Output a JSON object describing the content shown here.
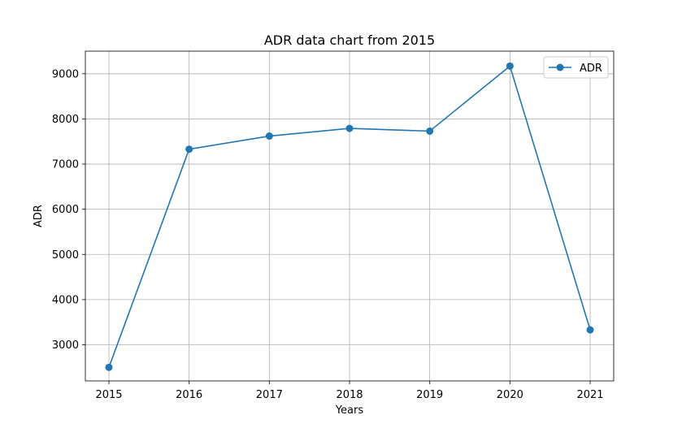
{
  "chart_data": {
    "type": "line",
    "title": "ADR data chart from 2015",
    "xlabel": "Years",
    "ylabel": "ADR",
    "x": [
      "2015",
      "2016",
      "2017",
      "2018",
      "2019",
      "2020",
      "2021"
    ],
    "series": [
      {
        "name": "ADR",
        "values": [
          2500,
          7330,
          7620,
          7790,
          7730,
          9170,
          3330
        ],
        "color": "#1f77b4",
        "marker": "circle"
      }
    ],
    "ylim": [
      2200,
      9500
    ],
    "yticks": [
      3000,
      4000,
      5000,
      6000,
      7000,
      8000,
      9000
    ],
    "grid": true,
    "legend": "top-right"
  }
}
